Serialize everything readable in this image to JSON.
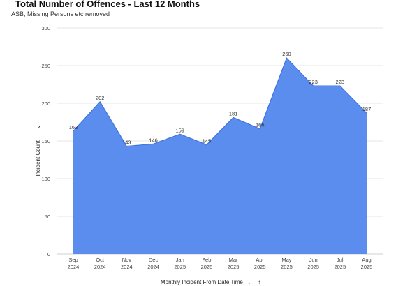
{
  "header": {
    "title": "Total Number of Offences - Last 12 Months",
    "subtitle": "ASB, Missing Persons etc removed"
  },
  "chart_data": {
    "type": "area",
    "title": "Total Number of Offences - Last 12 Months",
    "subtitle": "ASB, Missing Persons etc removed",
    "xlabel": "Monthly Incident From Date Time",
    "ylabel": "Incident Count",
    "ylim": [
      0,
      300
    ],
    "yticks": [
      0,
      50,
      100,
      150,
      200,
      250,
      300
    ],
    "grid": true,
    "color": "#5b8def",
    "categories": [
      {
        "month": "Sep",
        "year": "2024"
      },
      {
        "month": "Oct",
        "year": "2024"
      },
      {
        "month": "Nov",
        "year": "2024"
      },
      {
        "month": "Dec",
        "year": "2024"
      },
      {
        "month": "Jan",
        "year": "2025"
      },
      {
        "month": "Feb",
        "year": "2025"
      },
      {
        "month": "Mar",
        "year": "2025"
      },
      {
        "month": "Apr",
        "year": "2025"
      },
      {
        "month": "May",
        "year": "2025"
      },
      {
        "month": "Jun",
        "year": "2025"
      },
      {
        "month": "Jul",
        "year": "2025"
      },
      {
        "month": "Aug",
        "year": "2025"
      }
    ],
    "values": [
      163,
      202,
      143,
      146,
      159,
      145,
      181,
      166,
      260,
      223,
      223,
      187
    ]
  },
  "controls": {
    "ylabel_chevron": "⌄",
    "xlabel_chevron": "⌄",
    "sort_icon": "↑"
  }
}
